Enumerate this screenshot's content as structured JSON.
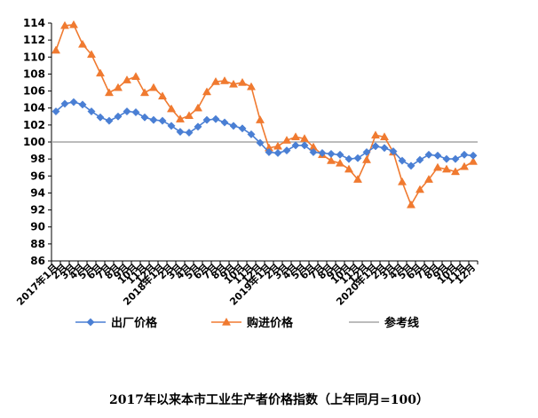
{
  "chart_data": {
    "type": "line",
    "title": "2017年以来本市工业生产者价格指数（上年同月=100）",
    "ylim": [
      86,
      114
    ],
    "yticks": [
      86,
      88,
      90,
      92,
      94,
      96,
      98,
      100,
      102,
      104,
      106,
      108,
      110,
      112,
      114
    ],
    "categories": [
      "2017年1月",
      "2月",
      "3月",
      "4月",
      "5月",
      "6月",
      "7月",
      "8月",
      "9月",
      "10月",
      "11月",
      "12月",
      "2018年1月",
      "2月",
      "3月",
      "4月",
      "5月",
      "6月",
      "7月",
      "8月",
      "9月",
      "10月",
      "11月",
      "12月",
      "2019年1月",
      "2月",
      "3月",
      "4月",
      "5月",
      "6月",
      "7月",
      "8月",
      "9月",
      "10月",
      "11月",
      "12月",
      "2020年1月",
      "2月",
      "3月",
      "4月",
      "5月",
      "6月",
      "7月",
      "8月",
      "9月",
      "10月",
      "11月",
      "12月"
    ],
    "series": [
      {
        "name": "出厂价格",
        "color": "#4a7fd4",
        "marker": "diamond",
        "values": [
          103.6,
          104.5,
          104.7,
          104.4,
          103.6,
          102.9,
          102.5,
          103.0,
          103.6,
          103.5,
          102.9,
          102.6,
          102.5,
          101.9,
          101.2,
          101.1,
          101.8,
          102.6,
          102.7,
          102.3,
          101.9,
          101.6,
          100.9,
          99.9,
          98.8,
          98.7,
          99.0,
          99.6,
          99.6,
          98.8,
          98.7,
          98.6,
          98.5,
          98.0,
          98.1,
          98.8,
          99.5,
          99.3,
          98.9,
          97.8,
          97.2,
          97.9,
          98.5,
          98.4,
          98.0,
          98.0,
          98.5,
          98.4
        ]
      },
      {
        "name": "购进价格",
        "color": "#f07a30",
        "marker": "triangle",
        "values": [
          110.8,
          113.7,
          113.8,
          111.5,
          110.3,
          108.1,
          105.8,
          106.4,
          107.3,
          107.7,
          105.8,
          106.4,
          105.4,
          103.9,
          102.7,
          103.1,
          104.0,
          105.9,
          107.1,
          107.2,
          106.8,
          107.0,
          106.5,
          102.6,
          99.3,
          99.5,
          100.2,
          100.6,
          100.4,
          99.4,
          98.5,
          97.8,
          97.5,
          96.8,
          95.6,
          97.9,
          100.8,
          100.6,
          98.8,
          95.3,
          92.6,
          94.4,
          95.6,
          97.0,
          96.8,
          96.5,
          97.1,
          97.7
        ]
      },
      {
        "name": "参考线",
        "color": "#a6a6a6",
        "marker": "none",
        "value": 100
      }
    ]
  }
}
